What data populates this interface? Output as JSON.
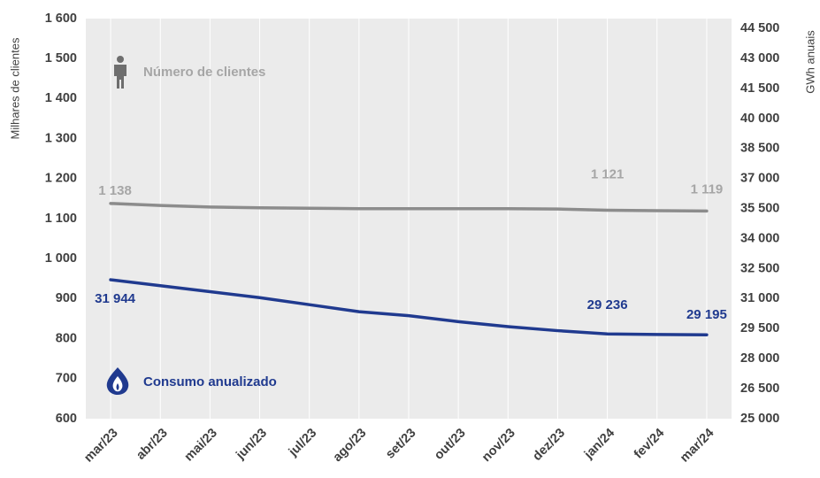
{
  "chart_data": {
    "type": "line",
    "ylabel": "Milhares de clientes",
    "y2label": "GWh anuais",
    "categories": [
      "mar/23",
      "abr/23",
      "mai/23",
      "jun/23",
      "jul/23",
      "ago/23",
      "set/23",
      "out/23",
      "nov/23",
      "dez/23",
      "jan/24",
      "fev/24",
      "mar/24"
    ],
    "series": [
      {
        "name": "Número de clientes",
        "color": "#8c8c8c",
        "axis": "y",
        "values": [
          1138,
          1133,
          1129,
          1127,
          1126,
          1125,
          1125,
          1125,
          1125,
          1124,
          1121,
          1120,
          1119
        ],
        "value_labels": [
          "1 138",
          null,
          null,
          null,
          null,
          null,
          null,
          null,
          null,
          null,
          "1 121",
          null,
          "1 119"
        ]
      },
      {
        "name": "Consumo anualizado",
        "color": "#203a8f",
        "axis": "y2",
        "values": [
          31944,
          31650,
          31350,
          31050,
          30700,
          30350,
          30150,
          29850,
          29600,
          29400,
          29236,
          29210,
          29195
        ],
        "value_labels": [
          "31 944",
          null,
          null,
          null,
          null,
          null,
          null,
          null,
          null,
          null,
          "29 236",
          null,
          "29 195"
        ]
      }
    ],
    "ylim": [
      600,
      1600
    ],
    "yticks": [
      {
        "value": 1600,
        "label": "1 600"
      },
      {
        "value": 1500,
        "label": "1 500"
      },
      {
        "value": 1400,
        "label": "1 400"
      },
      {
        "value": 1300,
        "label": "1 300"
      },
      {
        "value": 1200,
        "label": "1 200"
      },
      {
        "value": 1100,
        "label": "1 100"
      },
      {
        "value": 1000,
        "label": "1 000"
      },
      900,
      800,
      700,
      600
    ],
    "y2lim": [
      25000,
      45000
    ],
    "y2ticks": [
      {
        "value": 44500,
        "label": "44 500"
      },
      {
        "value": 43000,
        "label": "43 000"
      },
      {
        "value": 41500,
        "label": "41 500"
      },
      {
        "value": 40000,
        "label": "40 000"
      },
      {
        "value": 38500,
        "label": "38 500"
      },
      {
        "value": 37000,
        "label": "37 000"
      },
      {
        "value": 35500,
        "label": "35 500"
      },
      {
        "value": 34000,
        "label": "34 000"
      },
      {
        "value": 32500,
        "label": "32 500"
      },
      {
        "value": 31000,
        "label": "31 000"
      },
      {
        "value": 29500,
        "label": "29 500"
      },
      {
        "value": 28000,
        "label": "28 000"
      },
      {
        "value": 26500,
        "label": "26 500"
      },
      {
        "value": 25000,
        "label": "25 000"
      }
    ],
    "grid": true
  }
}
